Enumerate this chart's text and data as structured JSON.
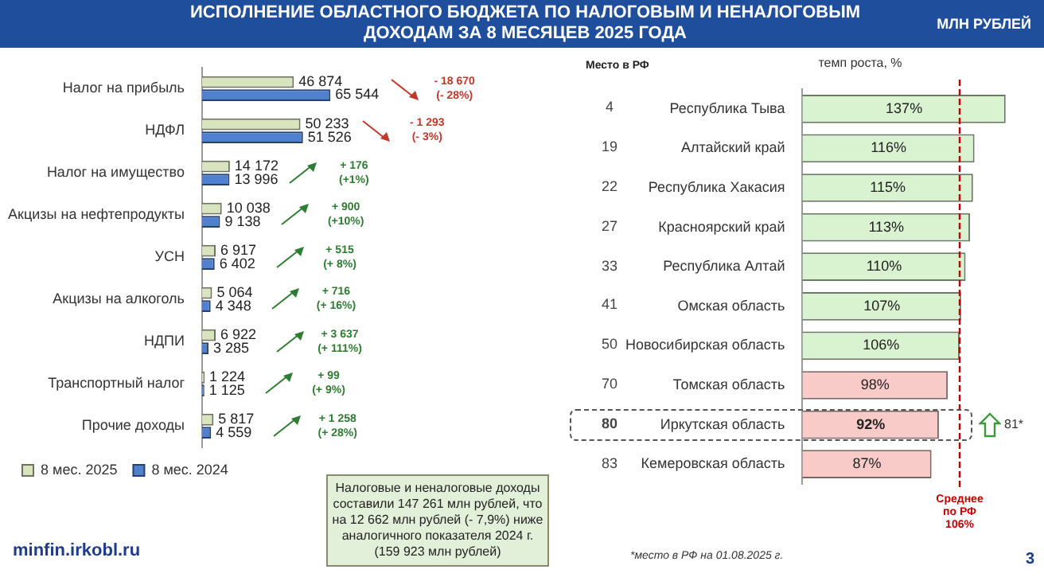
{
  "chart_data": [
    {
      "type": "bar",
      "orientation": "horizontal",
      "title": "ИСПОЛНЕНИЕ ОБЛАСТНОГО БЮДЖЕТА ПО НАЛОГОВЫМ И НЕНАЛОГОВЫМ ДОХОДАМ ЗА 8 МЕСЯЦЕВ 2025 ГОДА",
      "categories": [
        "Налог на прибыль",
        "НДФЛ",
        "Налог на имущество",
        "Акцизы на нефтепродукты",
        "УСН",
        "Акцизы на алкоголь",
        "НДПИ",
        "Транспортный налог",
        "Прочие доходы"
      ],
      "series": [
        {
          "name": "8 мес. 2025",
          "color": "#d7e4bd",
          "values": [
            46874,
            50233,
            14172,
            10038,
            6917,
            5064,
            6922,
            1224,
            5817
          ]
        },
        {
          "name": "8 мес. 2024",
          "color": "#4f81d0",
          "values": [
            65544,
            51526,
            13996,
            9138,
            6402,
            4348,
            3285,
            1125,
            4559
          ]
        }
      ],
      "data_labels": true,
      "legend": "bottom left",
      "tick_labels": "y",
      "annotations": [
        "- 18 670 (- 28%)",
        "- 1 293 (- 3%)",
        "+ 176 (+1%)",
        "+ 900 (+10%)",
        "+ 515 (+ 8%)",
        "+ 716 (+ 16%)",
        "+ 3 637 (+ 111%)",
        "+ 99 (+ 9%)",
        "+ 1 258 (+ 28%)",
        "Налоговые и неналоговые доходы составили 147 261 млн рублей, что на 12 662 млн рублей (- 7,9%) ниже аналогичного показателя 2024 г. (159 923 млн рублей)",
        "minfin.irkobl.ru"
      ]
    },
    {
      "type": "bar",
      "orientation": "horizontal",
      "subtitle": "МЛН РУБЛЕЙ",
      "xlabel": "темп роста, %",
      "categories": [
        "Республика Тыва",
        "Алтайский край",
        "Республика Хакасия",
        "Красноярский край",
        "Республика Алтай",
        "Омская область",
        "Новосибирская область",
        "Томская область",
        "Иркутская область",
        "Кемеровская область"
      ],
      "values": [
        137,
        116,
        115,
        113,
        110,
        107,
        106,
        98,
        92,
        87
      ],
      "colors": [
        "#d9f2d0",
        "#d9f2d0",
        "#d9f2d0",
        "#d9f2d0",
        "#d9f2d0",
        "#d9f2d0",
        "#d9f2d0",
        "#f8cbc8",
        "#f8cbc8",
        "#f8cbc8"
      ],
      "value_labels": [
        "137%",
        "116%",
        "115%",
        "113%",
        "110%",
        "107%",
        "106%",
        "98%",
        "92%",
        "87%"
      ],
      "ref_lines": [
        {
          "axis": "x",
          "value": 106,
          "label": "Среднее по РФ 106%",
          "color": "#c00000",
          "line_style": "dashed"
        }
      ],
      "tick_labels": "y",
      "annotations": [
        "4",
        "19",
        "22",
        "27",
        "33",
        "41",
        "50",
        "70",
        "80",
        "83",
        "81*",
        "Место в РФ",
        "*место в РФ на 01.08.2025 г.",
        "3"
      ]
    }
  ]
}
